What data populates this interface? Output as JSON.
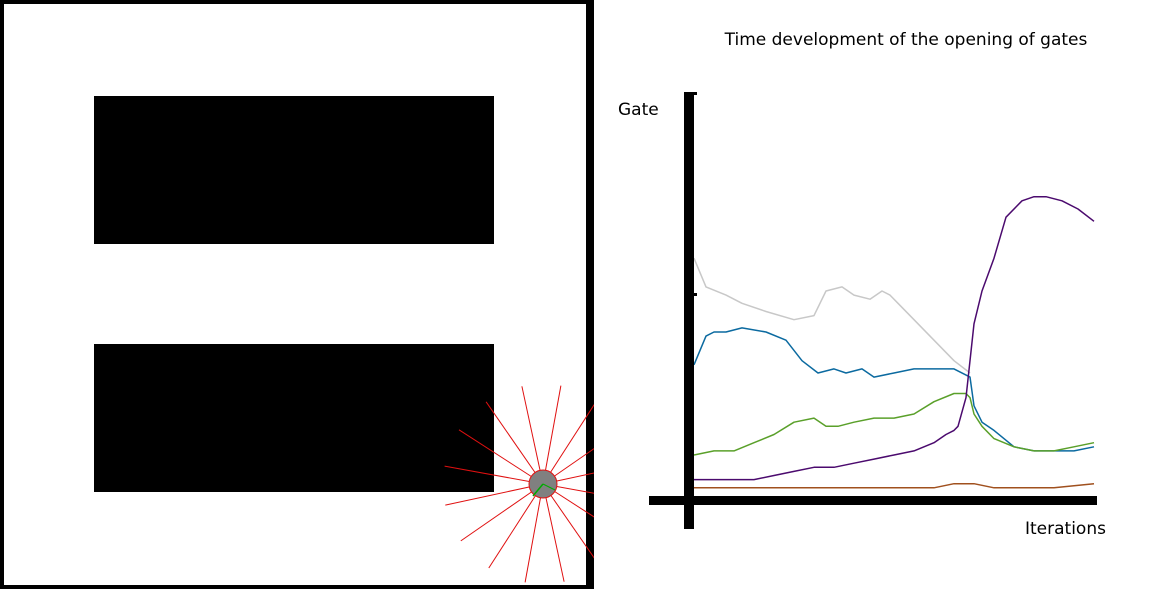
{
  "arena": {
    "wall_color": "#000000",
    "robot_color": "#808080",
    "sensor_ray_color": "#e01010",
    "heading_color": "#00aa00"
  },
  "chart_data": {
    "type": "line",
    "title": "Time development of the opening of gates",
    "xlabel": "Iterations",
    "ylabel": "Gate",
    "xlim": [
      0,
      100
    ],
    "ylim": [
      0,
      1
    ],
    "grid": false,
    "legend": "none",
    "series": [
      {
        "color": "#c8c8c8",
        "x": [
          0,
          3,
          8,
          12,
          18,
          25,
          30,
          33,
          37,
          40,
          44,
          47,
          49,
          51,
          55,
          60,
          65,
          69
        ],
        "y": [
          0.58,
          0.51,
          0.49,
          0.47,
          0.45,
          0.43,
          0.44,
          0.5,
          0.51,
          0.49,
          0.48,
          0.5,
          0.49,
          0.47,
          0.43,
          0.38,
          0.33,
          0.3
        ]
      },
      {
        "color": "#0b6aa0",
        "x": [
          0,
          3,
          5,
          8,
          12,
          18,
          23,
          27,
          31,
          35,
          38,
          42,
          45,
          50,
          55,
          60,
          65,
          69,
          70,
          72,
          75,
          80,
          85,
          90,
          95,
          100
        ],
        "y": [
          0.32,
          0.39,
          0.4,
          0.4,
          0.41,
          0.4,
          0.38,
          0.33,
          0.3,
          0.31,
          0.3,
          0.31,
          0.29,
          0.3,
          0.31,
          0.31,
          0.31,
          0.29,
          0.22,
          0.18,
          0.16,
          0.12,
          0.11,
          0.11,
          0.11,
          0.12
        ]
      },
      {
        "color": "#5aa02a",
        "x": [
          0,
          5,
          10,
          15,
          20,
          25,
          30,
          33,
          36,
          40,
          45,
          50,
          55,
          60,
          65,
          68,
          69,
          70,
          72,
          75,
          80,
          85,
          90,
          95,
          100
        ],
        "y": [
          0.1,
          0.11,
          0.11,
          0.13,
          0.15,
          0.18,
          0.19,
          0.17,
          0.17,
          0.18,
          0.19,
          0.19,
          0.2,
          0.23,
          0.25,
          0.25,
          0.24,
          0.2,
          0.17,
          0.14,
          0.12,
          0.11,
          0.11,
          0.12,
          0.13
        ]
      },
      {
        "color": "#4b0a6e",
        "x": [
          0,
          5,
          10,
          15,
          20,
          25,
          30,
          35,
          40,
          45,
          50,
          55,
          60,
          63,
          65,
          66,
          68,
          70,
          72,
          75,
          78,
          82,
          85,
          88,
          92,
          96,
          100
        ],
        "y": [
          0.04,
          0.04,
          0.04,
          0.04,
          0.05,
          0.06,
          0.07,
          0.07,
          0.08,
          0.09,
          0.1,
          0.11,
          0.13,
          0.15,
          0.16,
          0.17,
          0.24,
          0.42,
          0.5,
          0.58,
          0.68,
          0.72,
          0.73,
          0.73,
          0.72,
          0.7,
          0.67
        ]
      },
      {
        "color": "#a0501e",
        "x": [
          0,
          10,
          20,
          30,
          40,
          50,
          60,
          65,
          70,
          75,
          80,
          90,
          100
        ],
        "y": [
          0.02,
          0.02,
          0.02,
          0.02,
          0.02,
          0.02,
          0.02,
          0.03,
          0.03,
          0.02,
          0.02,
          0.02,
          0.03
        ]
      }
    ]
  }
}
